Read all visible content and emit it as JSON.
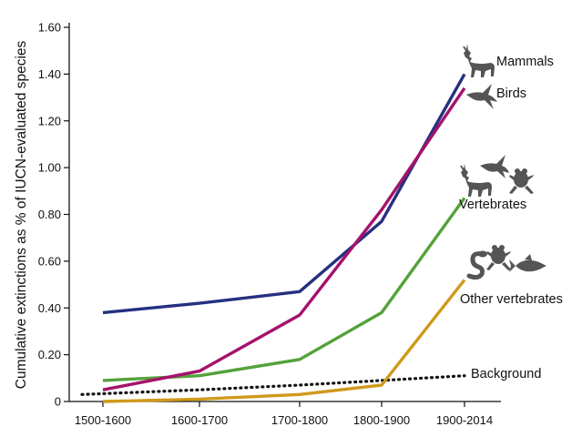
{
  "chart_data": {
    "type": "line",
    "title": "",
    "xlabel": "",
    "ylabel": "Cumulative extinctions as % of IUCN-evaluated species",
    "categories": [
      "1500-1600",
      "1600-1700",
      "1700-1800",
      "1800-1900",
      "1900-2014"
    ],
    "ylim": [
      0,
      1.6
    ],
    "yticks": [
      "0",
      "0.20",
      "0.40",
      "0.60",
      "0.80",
      "1.00",
      "1.20",
      "1.40",
      "1.60"
    ],
    "grid": false,
    "series": [
      {
        "name": "Mammals",
        "color": "#25307f",
        "style": "solid",
        "values": [
          0.38,
          0.42,
          0.47,
          0.77,
          1.4
        ]
      },
      {
        "name": "Birds",
        "color": "#a5126c",
        "style": "solid",
        "values": [
          0.05,
          0.13,
          0.37,
          0.82,
          1.34
        ]
      },
      {
        "name": "Vertebrates",
        "color": "#54a23a",
        "style": "solid",
        "values": [
          0.09,
          0.11,
          0.18,
          0.38,
          0.87
        ]
      },
      {
        "name": "Other vertebrates",
        "color": "#cf9a1b",
        "style": "solid",
        "values": [
          0.0,
          0.01,
          0.03,
          0.07,
          0.52
        ]
      },
      {
        "name": "Background",
        "color": "#111111",
        "style": "dotted",
        "values": [
          0.03,
          0.05,
          0.07,
          0.09,
          0.11
        ]
      }
    ]
  }
}
